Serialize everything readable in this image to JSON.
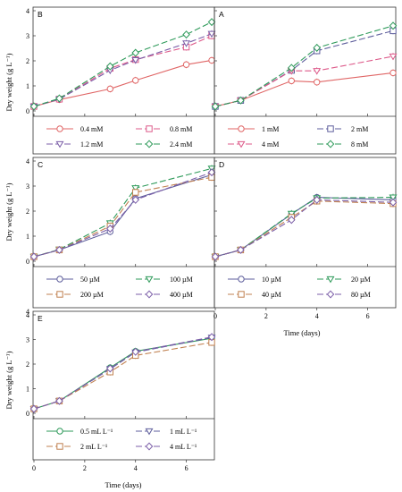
{
  "figure": {
    "ylabel": "Dry weight (g L⁻¹)",
    "xlabel": "Time (days)"
  },
  "chart_data": [
    {
      "panel": "B",
      "type": "line",
      "x": [
        0,
        1,
        3,
        4,
        6,
        7
      ],
      "xlim": [
        0,
        7
      ],
      "ylim": [
        0,
        4
      ],
      "yticks": [
        "0",
        "1",
        "2",
        "3",
        "4"
      ],
      "series": [
        {
          "name": "0.4 mM",
          "marker": "circle",
          "color": "#e06666",
          "dash": "solid",
          "values": [
            0.18,
            0.45,
            0.88,
            1.22,
            1.85,
            2.02
          ]
        },
        {
          "name": "0.8 mM",
          "marker": "square",
          "color": "#dd5a8a",
          "dash": "long",
          "values": [
            0.18,
            0.47,
            1.7,
            2.05,
            2.55,
            3.0
          ]
        },
        {
          "name": "1.2 mM",
          "marker": "triangle-down",
          "color": "#7b5ea8",
          "dash": "long",
          "values": [
            0.18,
            0.47,
            1.62,
            2.03,
            2.7,
            3.08
          ]
        },
        {
          "name": "2.4 mM",
          "marker": "diamond",
          "color": "#2e9a5a",
          "dash": "long",
          "values": [
            0.18,
            0.5,
            1.78,
            2.32,
            3.05,
            3.55
          ]
        }
      ]
    },
    {
      "panel": "A",
      "type": "line",
      "x": [
        0,
        1,
        3,
        4,
        7
      ],
      "xlim": [
        0,
        7
      ],
      "ylim": [
        0,
        4
      ],
      "yticks": [],
      "series": [
        {
          "name": "1 mM",
          "marker": "circle",
          "color": "#e06666",
          "dash": "solid",
          "values": [
            0.18,
            0.42,
            1.2,
            1.15,
            1.52
          ]
        },
        {
          "name": "2 mM",
          "marker": "square",
          "color": "#5e5e9c",
          "dash": "long",
          "values": [
            0.18,
            0.42,
            1.62,
            2.4,
            3.2
          ]
        },
        {
          "name": "4 mM",
          "marker": "triangle-down",
          "color": "#dd5a8a",
          "dash": "long",
          "values": [
            0.18,
            0.42,
            1.6,
            1.6,
            2.18
          ]
        },
        {
          "name": "8 mM",
          "marker": "diamond",
          "color": "#2e9a5a",
          "dash": "long",
          "values": [
            0.18,
            0.42,
            1.72,
            2.52,
            3.4
          ]
        }
      ]
    },
    {
      "panel": "C",
      "type": "line",
      "x": [
        0,
        1,
        3,
        4,
        7
      ],
      "xlim": [
        0,
        7
      ],
      "ylim": [
        0,
        4
      ],
      "yticks": [
        "0",
        "1",
        "2",
        "3",
        "4"
      ],
      "series": [
        {
          "name": "50 µM",
          "marker": "circle",
          "color": "#5e5e9c",
          "dash": "solid",
          "values": [
            0.18,
            0.45,
            1.18,
            2.5,
            3.45
          ]
        },
        {
          "name": "100 µM",
          "marker": "triangle-down",
          "color": "#2e9a5a",
          "dash": "long",
          "values": [
            0.18,
            0.47,
            1.52,
            2.92,
            3.7
          ]
        },
        {
          "name": "200 µM",
          "marker": "square",
          "color": "#c08050",
          "dash": "long",
          "values": [
            0.18,
            0.45,
            1.4,
            2.75,
            3.35
          ]
        },
        {
          "name": "400 µM",
          "marker": "diamond",
          "color": "#7b5ea8",
          "dash": "long",
          "values": [
            0.18,
            0.45,
            1.3,
            2.45,
            3.55
          ]
        }
      ]
    },
    {
      "panel": "D",
      "type": "line",
      "x": [
        0,
        1,
        3,
        4,
        7
      ],
      "xlim": [
        0,
        7
      ],
      "ylim": [
        0,
        4
      ],
      "yticks": [],
      "series": [
        {
          "name": "10 µM",
          "marker": "circle",
          "color": "#5e5e9c",
          "dash": "solid",
          "values": [
            0.18,
            0.45,
            1.88,
            2.55,
            2.45
          ]
        },
        {
          "name": "20 µM",
          "marker": "triangle-down",
          "color": "#2e9a5a",
          "dash": "long",
          "values": [
            0.18,
            0.45,
            1.9,
            2.52,
            2.55
          ]
        },
        {
          "name": "40 µM",
          "marker": "square",
          "color": "#c08050",
          "dash": "long",
          "values": [
            0.18,
            0.45,
            1.75,
            2.4,
            2.3
          ]
        },
        {
          "name": "80 µM",
          "marker": "diamond",
          "color": "#7b5ea8",
          "dash": "long",
          "values": [
            0.18,
            0.45,
            1.65,
            2.45,
            2.35
          ]
        }
      ]
    },
    {
      "panel": "E",
      "type": "line",
      "x": [
        0,
        1,
        3,
        4,
        7
      ],
      "xlim": [
        0,
        7
      ],
      "ylim": [
        0,
        4
      ],
      "yticks": [
        "0",
        "1",
        "2",
        "3",
        "4"
      ],
      "series": [
        {
          "name": "0.5 mL L⁻¹",
          "marker": "circle",
          "color": "#2e9a5a",
          "dash": "solid",
          "values": [
            0.18,
            0.5,
            1.85,
            2.52,
            3.05
          ]
        },
        {
          "name": "1 mL L⁻¹",
          "marker": "triangle-down",
          "color": "#5e5e9c",
          "dash": "long",
          "values": [
            0.18,
            0.5,
            1.8,
            2.48,
            3.08
          ]
        },
        {
          "name": "2 mL L⁻¹",
          "marker": "square",
          "color": "#c08050",
          "dash": "long",
          "values": [
            0.18,
            0.5,
            1.68,
            2.35,
            2.88
          ]
        },
        {
          "name": "4 mL L⁻¹",
          "marker": "diamond",
          "color": "#7b5ea8",
          "dash": "long",
          "values": [
            0.18,
            0.5,
            1.82,
            2.5,
            3.1
          ]
        }
      ]
    }
  ],
  "xticks": [
    "0",
    "2",
    "4",
    "6"
  ]
}
